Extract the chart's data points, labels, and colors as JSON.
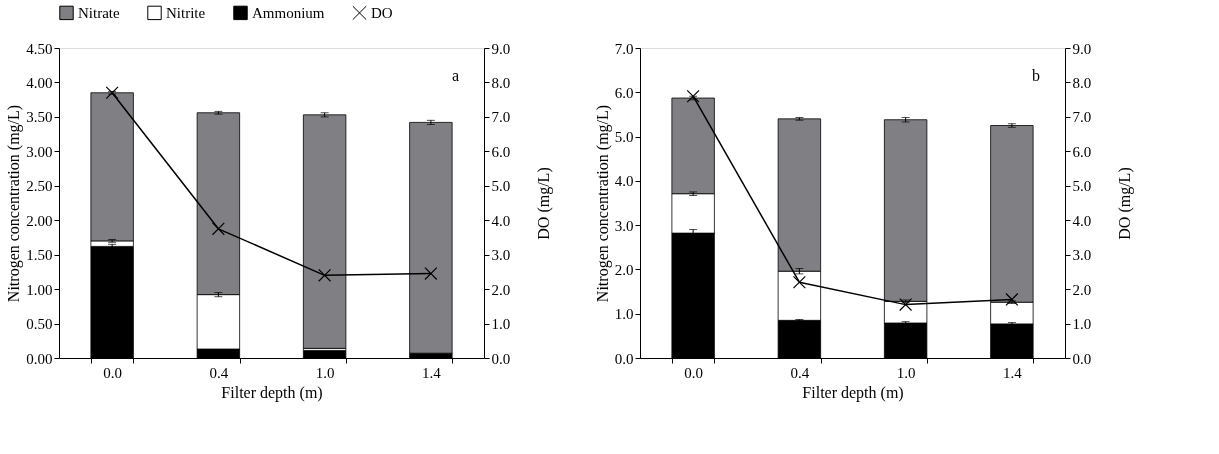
{
  "chart_data": [
    {
      "type": "bar",
      "stacked": true,
      "categories": [
        "0.0",
        "0.4",
        "1.0",
        "1.4"
      ],
      "xlabel": "Filter depth (m)",
      "ylabel": "Nitrogen concentration (mg/L)",
      "y2label": "DO (mg/L)",
      "ylim": [
        0,
        4.5
      ],
      "yticks": [
        {
          "value": 0,
          "label": "0.00"
        },
        {
          "value": 0.5,
          "label": "0.50"
        },
        {
          "value": 1,
          "label": "1.00"
        },
        {
          "value": 1.5,
          "label": "1.50"
        },
        {
          "value": 2,
          "label": "2.00"
        },
        {
          "value": 2.5,
          "label": "2.50"
        },
        {
          "value": 3,
          "label": "3.00"
        },
        {
          "value": 3.5,
          "label": "3.50"
        },
        {
          "value": 4,
          "label": "4.00"
        },
        {
          "value": 4.5,
          "label": "4.50"
        }
      ],
      "y2lim": [
        0,
        9
      ],
      "y2ticks": [
        {
          "value": 0,
          "label": "0.0"
        },
        {
          "value": 1,
          "label": "1.0"
        },
        {
          "value": 2,
          "label": "2.0"
        },
        {
          "value": 3,
          "label": "3.0"
        },
        {
          "value": 4,
          "label": "4.0"
        },
        {
          "value": 5,
          "label": "5.0"
        },
        {
          "value": 6,
          "label": "6.0"
        },
        {
          "value": 7,
          "label": "7.0"
        },
        {
          "value": 8,
          "label": "8.0"
        },
        {
          "value": 9,
          "label": "9.0"
        }
      ],
      "series": [
        {
          "name": "Ammonium",
          "color": "#000000",
          "values": [
            1.62,
            0.13,
            0.11,
            0.07
          ],
          "errors": [
            0.03,
            null,
            null,
            null
          ]
        },
        {
          "name": "Nitrite",
          "color": "#ffffff",
          "values": [
            0.08,
            0.79,
            0.03,
            null
          ],
          "errors": [
            0.02,
            0.03,
            null,
            null
          ]
        },
        {
          "name": "Nitrate",
          "color": "#808084",
          "values": [
            2.15,
            2.64,
            3.39,
            3.35
          ],
          "errors": [
            0.02,
            0.02,
            0.03,
            0.03
          ]
        },
        {
          "name": "DO",
          "color": "#000000",
          "type": "line",
          "axis": "y2",
          "values": [
            7.7,
            3.75,
            2.4,
            2.45
          ]
        }
      ],
      "marker": "cross",
      "legend": "top",
      "grid": false,
      "annotations": [
        "a"
      ]
    },
    {
      "type": "bar",
      "stacked": true,
      "categories": [
        "0.0",
        "0.4",
        "1.0",
        "1.4"
      ],
      "xlabel": "Filter depth (m)",
      "ylabel": "Nitrogen concentration (mg/L)",
      "y2label": "DO (mg/L)",
      "ylim": [
        0,
        7
      ],
      "yticks": [
        {
          "value": 0,
          "label": "0.0"
        },
        {
          "value": 1,
          "label": "1.0"
        },
        {
          "value": 2,
          "label": "2.0"
        },
        {
          "value": 3,
          "label": "3.0"
        },
        {
          "value": 4,
          "label": "4.0"
        },
        {
          "value": 5,
          "label": "5.0"
        },
        {
          "value": 6,
          "label": "6.0"
        },
        {
          "value": 7,
          "label": "7.0"
        }
      ],
      "y2lim": [
        0,
        9
      ],
      "y2ticks": [
        {
          "value": 0,
          "label": "0.0"
        },
        {
          "value": 1,
          "label": "1.0"
        },
        {
          "value": 2,
          "label": "2.0"
        },
        {
          "value": 3,
          "label": "3.0"
        },
        {
          "value": 4,
          "label": "4.0"
        },
        {
          "value": 5,
          "label": "5.0"
        },
        {
          "value": 6,
          "label": "6.0"
        },
        {
          "value": 7,
          "label": "7.0"
        },
        {
          "value": 8,
          "label": "8.0"
        },
        {
          "value": 9,
          "label": "9.0"
        }
      ],
      "series": [
        {
          "name": "Ammonium",
          "color": "#000000",
          "values": [
            2.82,
            0.85,
            0.79,
            0.77
          ],
          "errors": [
            0.08,
            0.02,
            0.03,
            0.03
          ]
        },
        {
          "name": "Nitrite",
          "color": "#ffffff",
          "values": [
            0.89,
            1.11,
            0.49,
            0.49
          ],
          "errors": [
            0.04,
            0.06,
            0.03,
            0.03
          ]
        },
        {
          "name": "Nitrate",
          "color": "#808084",
          "values": [
            2.16,
            3.44,
            4.1,
            3.99
          ],
          "errors": [
            0.04,
            0.03,
            0.05,
            0.04
          ]
        },
        {
          "name": "DO",
          "color": "#000000",
          "type": "line",
          "axis": "y2",
          "values": [
            7.6,
            2.2,
            1.55,
            1.7
          ]
        }
      ],
      "marker": "cross",
      "legend": "top",
      "grid": false,
      "annotations": [
        "b"
      ]
    }
  ]
}
